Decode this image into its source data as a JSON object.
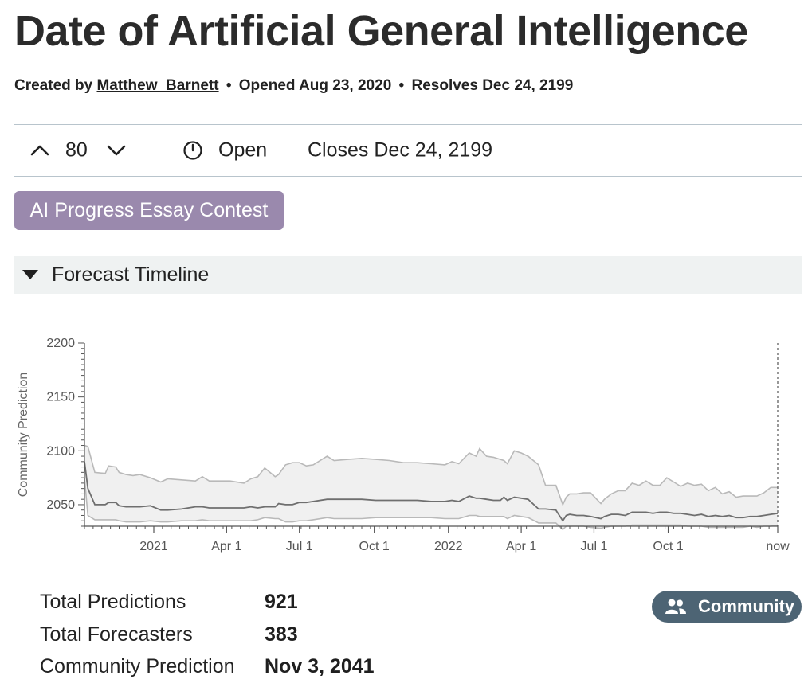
{
  "header": {
    "title": "Date of Artificial General Intelligence",
    "created_by_label": "Created by",
    "author": "Matthew_Barnett",
    "opened": "Opened Aug 23, 2020",
    "resolves": "Resolves Dec 24, 2199",
    "separator": "•"
  },
  "vote": {
    "count": "80",
    "status": "Open",
    "closes": "Closes Dec 24, 2199"
  },
  "tag": {
    "label": "AI Progress Essay Contest",
    "color": "#9a89ad"
  },
  "timeline": {
    "label": "Forecast Timeline"
  },
  "chart_data": {
    "type": "line",
    "title": "",
    "xlabel": "",
    "ylabel": "Community Prediction",
    "ylim": [
      2030,
      2200
    ],
    "yticks": [
      2050,
      2100,
      2150,
      2200
    ],
    "x_ticks": [
      {
        "label": "2021",
        "x": 0.1
      },
      {
        "label": "Apr 1",
        "x": 0.205
      },
      {
        "label": "Jul 1",
        "x": 0.31
      },
      {
        "label": "Oct 1",
        "x": 0.418
      },
      {
        "label": "2022",
        "x": 0.525
      },
      {
        "label": "Apr 1",
        "x": 0.63
      },
      {
        "label": "Jul 1",
        "x": 0.735
      },
      {
        "label": "Oct 1",
        "x": 0.842
      },
      {
        "label": "now",
        "x": 1.0
      }
    ],
    "x": [
      0,
      0.005,
      0.015,
      0.03,
      0.035,
      0.045,
      0.05,
      0.06,
      0.07,
      0.08,
      0.095,
      0.11,
      0.12,
      0.14,
      0.16,
      0.17,
      0.18,
      0.21,
      0.23,
      0.24,
      0.25,
      0.26,
      0.275,
      0.28,
      0.29,
      0.3,
      0.31,
      0.32,
      0.33,
      0.35,
      0.36,
      0.38,
      0.4,
      0.42,
      0.44,
      0.46,
      0.48,
      0.5,
      0.52,
      0.53,
      0.54,
      0.555,
      0.565,
      0.57,
      0.58,
      0.59,
      0.6,
      0.605,
      0.61,
      0.62,
      0.63,
      0.64,
      0.655,
      0.665,
      0.68,
      0.69,
      0.695,
      0.7,
      0.71,
      0.72,
      0.73,
      0.745,
      0.75,
      0.76,
      0.77,
      0.78,
      0.79,
      0.8,
      0.81,
      0.82,
      0.83,
      0.84,
      0.85,
      0.86,
      0.87,
      0.88,
      0.89,
      0.9,
      0.91,
      0.92,
      0.93,
      0.94,
      0.95,
      0.96,
      0.97,
      0.98,
      0.99,
      1.0
    ],
    "series": [
      {
        "name": "upper",
        "values": [
          2105,
          2104,
          2080,
          2079,
          2086,
          2085,
          2080,
          2078,
          2077,
          2078,
          2075,
          2071,
          2074,
          2073,
          2072,
          2076,
          2072,
          2072,
          2070,
          2074,
          2076,
          2084,
          2076,
          2078,
          2087,
          2089,
          2089,
          2086,
          2087,
          2095,
          2091,
          2092,
          2093,
          2092,
          2091,
          2089,
          2089,
          2088,
          2087,
          2090,
          2088,
          2098,
          2095,
          2102,
          2095,
          2094,
          2092,
          2091,
          2088,
          2100,
          2098,
          2095,
          2087,
          2068,
          2068,
          2050,
          2057,
          2060,
          2060,
          2061,
          2061,
          2051,
          2055,
          2060,
          2063,
          2063,
          2070,
          2068,
          2072,
          2068,
          2068,
          2075,
          2071,
          2067,
          2070,
          2068,
          2069,
          2063,
          2066,
          2060,
          2062,
          2057,
          2058,
          2058,
          2058,
          2061,
          2066,
          2066
        ]
      },
      {
        "name": "median",
        "values": [
          2090,
          2065,
          2050,
          2050,
          2052,
          2052,
          2049,
          2048,
          2048,
          2048,
          2049,
          2045,
          2045,
          2046,
          2048,
          2048,
          2047,
          2047,
          2047,
          2048,
          2047,
          2048,
          2048,
          2051,
          2050,
          2050,
          2052,
          2052,
          2053,
          2055,
          2055,
          2055,
          2055,
          2054,
          2054,
          2054,
          2054,
          2053,
          2053,
          2054,
          2053,
          2058,
          2056,
          2056,
          2055,
          2054,
          2054,
          2057,
          2054,
          2057,
          2056,
          2055,
          2046,
          2046,
          2045,
          2035,
          2040,
          2041,
          2040,
          2040,
          2039,
          2037,
          2039,
          2041,
          2041,
          2040,
          2043,
          2043,
          2043,
          2042,
          2043,
          2043,
          2042,
          2042,
          2041,
          2040,
          2041,
          2039,
          2040,
          2039,
          2040,
          2038,
          2038,
          2039,
          2039,
          2040,
          2041,
          2042
        ]
      },
      {
        "name": "lower",
        "values": [
          2075,
          2040,
          2036,
          2036,
          2036,
          2036,
          2035,
          2034,
          2034,
          2034,
          2035,
          2034,
          2034,
          2035,
          2035,
          2036,
          2035,
          2035,
          2035,
          2035,
          2036,
          2038,
          2037,
          2037,
          2034,
          2034,
          2035,
          2035,
          2036,
          2038,
          2037,
          2037,
          2037,
          2038,
          2038,
          2038,
          2038,
          2038,
          2037,
          2037,
          2037,
          2040,
          2040,
          2039,
          2039,
          2039,
          2039,
          2039,
          2037,
          2040,
          2039,
          2038,
          2033,
          2033,
          2033,
          2027,
          2030,
          2030,
          2030,
          2030,
          2029,
          2028,
          2029,
          2030,
          2030,
          2030,
          2031,
          2031,
          2031,
          2031,
          2031,
          2031,
          2031,
          2031,
          2030,
          2030,
          2030,
          2029,
          2029,
          2029,
          2029,
          2029,
          2029,
          2030,
          2029,
          2030,
          2030,
          2031
        ]
      }
    ]
  },
  "stats": [
    {
      "label": "Total Predictions",
      "value": "921"
    },
    {
      "label": "Total Forecasters",
      "value": "383"
    },
    {
      "label": "Community Prediction",
      "value": "Nov 3, 2041"
    }
  ],
  "community_button": {
    "label": "Community",
    "color": "#4d6474"
  }
}
